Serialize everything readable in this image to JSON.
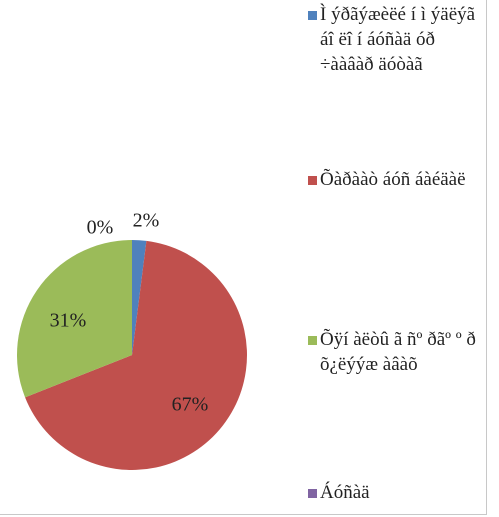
{
  "chart_data": {
    "type": "pie",
    "categories": [
      "Ì ýðãýæèëé í ì ýäëýã áî ëî í áóñàä óð ÷ààâàð äóòàã",
      "Õàðààò áóñ áàéäàë",
      "Õÿí àëòû ã ñº ðãº º ð õ¿ëýýæ àâàõ",
      "Áóñàä"
    ],
    "values": [
      2,
      67,
      31,
      0
    ],
    "value_labels": [
      "2%",
      "67%",
      "31%",
      "0%"
    ],
    "colors": [
      "#4f81bd",
      "#c0504d",
      "#9bbb59",
      "#8064a2"
    ],
    "legend": "right"
  }
}
